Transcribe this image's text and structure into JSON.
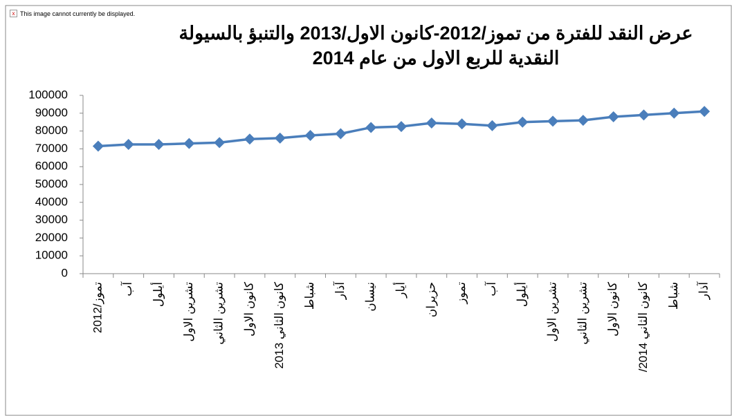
{
  "broken_image_text": "This image cannot currently be displayed.",
  "chart_data": {
    "type": "line",
    "title": "عرض النقد للفترة من تموز/2012-كانون الاول/2013 والتنبؤ بالسيولة النقدية للربع الاول من عام 2014",
    "categories": [
      "تموز/2012",
      "آب",
      "أيلول",
      "تشرين الاول",
      "تشرين الثاني",
      "كانون الاول",
      "كانون الثاني 2013",
      "شباط",
      "آذار",
      "نيسان",
      "أيار",
      "حزيران",
      "تموز",
      "آب",
      "أيلول",
      "تشرين الاول",
      "تشرين الثاني",
      "كانون الاول",
      "كانون الثاني 2014/",
      "شباط",
      "آذار"
    ],
    "values": [
      71500,
      72500,
      72500,
      73000,
      73500,
      75500,
      76000,
      77500,
      78500,
      82000,
      82500,
      84500,
      84000,
      83000,
      85000,
      85500,
      86000,
      88000,
      89000,
      90000,
      91000
    ],
    "color": "#4a7ebb",
    "ylim": [
      0,
      100000
    ],
    "yticks": [
      0,
      10000,
      20000,
      30000,
      40000,
      50000,
      60000,
      70000,
      80000,
      90000,
      100000
    ],
    "grid": false
  }
}
